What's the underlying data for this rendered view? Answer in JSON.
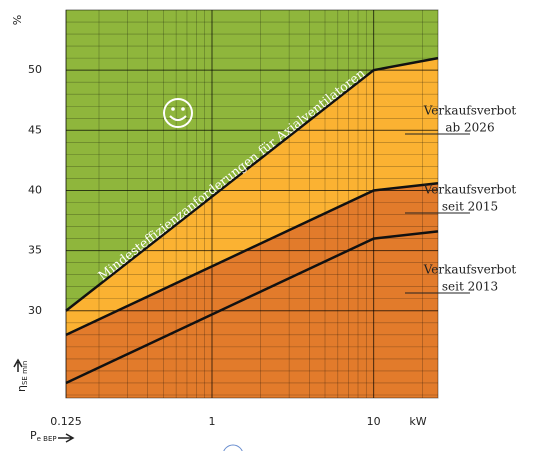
{
  "chart_data": {
    "type": "line",
    "ylabel_unit": "%",
    "ylabel": {
      "symbol": "η",
      "subscript": "SE min"
    },
    "xlabel": {
      "symbol": "P",
      "subscript": "e BEP"
    },
    "xunit": "kW",
    "x": [
      0.125,
      10,
      25
    ],
    "series": [
      {
        "color": "#111111",
        "values": [
          30,
          50,
          51
        ]
      },
      {
        "color": "#111111",
        "values": [
          28,
          40,
          40.6
        ]
      },
      {
        "color": "#111111",
        "values": [
          24,
          36,
          36.6
        ]
      }
    ],
    "region_colors": [
      "#8fb63c",
      "#fbb232",
      "#e27b2b"
    ],
    "xlim": [
      0.125,
      25
    ],
    "ylim": [
      22.75,
      55
    ],
    "xticks": [
      0.125,
      1,
      10
    ],
    "yticks": [
      30,
      35,
      40,
      45,
      50
    ],
    "xscale": "log",
    "grid": true,
    "annotation": "Mindesteffizienzanforderungen für Axialventilatoren",
    "region_labels": [
      {
        "lines": [
          "Verkaufsverbot",
          "ab 2026"
        ]
      },
      {
        "lines": [
          "Verkaufsverbot",
          "seit 2015"
        ]
      },
      {
        "lines": [
          "Verkaufsverbot",
          "seit 2013"
        ]
      }
    ]
  }
}
